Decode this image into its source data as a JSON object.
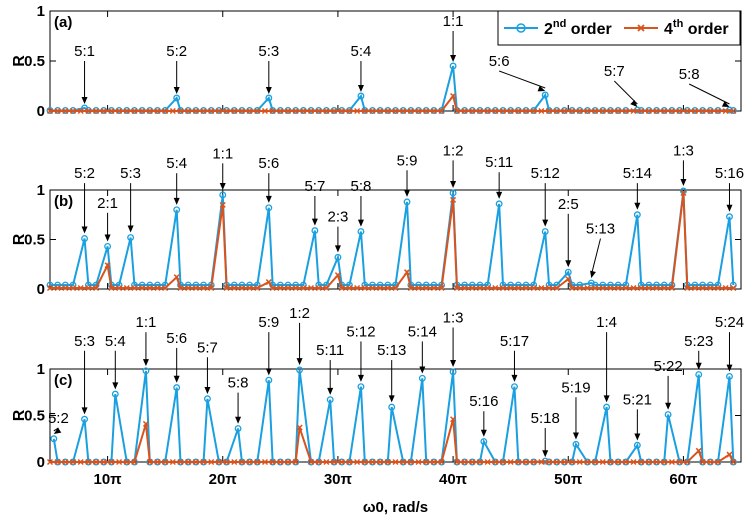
{
  "chart_data": [
    {
      "type": "line",
      "panel_label": "(a)",
      "ylabel": "R",
      "xlim_pi": [
        5,
        65
      ],
      "ylim": [
        0,
        1
      ],
      "yticks": [
        {
          "v": 0,
          "label": "0"
        },
        {
          "v": 0.5,
          "label": "0.5"
        },
        {
          "v": 1,
          "label": "1"
        }
      ],
      "legend": {
        "placement": "top-right"
      },
      "series": [
        {
          "name": "2nd order",
          "color": "#1aa0e0",
          "marker": "circle",
          "baseline": 0.005,
          "peaks": [
            {
              "x_pi": 8.0,
              "y": 0.03
            },
            {
              "x_pi": 16.0,
              "y": 0.13
            },
            {
              "x_pi": 24.0,
              "y": 0.13
            },
            {
              "x_pi": 32.0,
              "y": 0.15
            },
            {
              "x_pi": 40.0,
              "y": 0.45
            },
            {
              "x_pi": 48.0,
              "y": 0.16
            },
            {
              "x_pi": 56.0,
              "y": 0.01
            },
            {
              "x_pi": 64.0,
              "y": 0.01
            }
          ]
        },
        {
          "name": "4th order",
          "color": "#d9531e",
          "marker": "x",
          "baseline": 0.0,
          "peaks": [
            {
              "x_pi": 40.0,
              "y": 0.15
            }
          ]
        }
      ],
      "annotations": [
        {
          "text": "5:1",
          "x_pi": 8.0,
          "tip": 0.05,
          "label_y": 0.55
        },
        {
          "text": "5:2",
          "x_pi": 16.0,
          "tip": 0.15,
          "label_y": 0.55
        },
        {
          "text": "5:3",
          "x_pi": 24.0,
          "tip": 0.15,
          "label_y": 0.55
        },
        {
          "text": "5:4",
          "x_pi": 32.0,
          "tip": 0.17,
          "label_y": 0.55
        },
        {
          "text": "1:1",
          "x_pi": 40.0,
          "tip": 0.47,
          "label_y": 0.85
        },
        {
          "text": "5:6",
          "x_pi": 48.0,
          "tip": 0.18,
          "label_y": 0.45,
          "label_dx": -4
        },
        {
          "text": "5:7",
          "x_pi": 56.0,
          "tip": 0.02,
          "label_y": 0.35,
          "label_dx": -2
        },
        {
          "text": "5:8",
          "x_pi": 64.0,
          "tip": 0.02,
          "label_y": 0.32,
          "label_dx": -3.5
        }
      ]
    },
    {
      "type": "line",
      "panel_label": "(b)",
      "ylabel": "R",
      "xlim_pi": [
        5,
        65
      ],
      "ylim": [
        0,
        1
      ],
      "yticks": [
        {
          "v": 0,
          "label": "0"
        },
        {
          "v": 0.5,
          "label": "0.5"
        },
        {
          "v": 1,
          "label": "1"
        }
      ],
      "series": [
        {
          "name": "2nd order",
          "color": "#1aa0e0",
          "marker": "circle",
          "baseline": 0.04,
          "peaks": [
            {
              "x_pi": 8.0,
              "y": 0.51
            },
            {
              "x_pi": 10.0,
              "y": 0.43
            },
            {
              "x_pi": 12.0,
              "y": 0.52
            },
            {
              "x_pi": 16.0,
              "y": 0.8
            },
            {
              "x_pi": 20.0,
              "y": 0.95
            },
            {
              "x_pi": 24.0,
              "y": 0.82
            },
            {
              "x_pi": 28.0,
              "y": 0.59
            },
            {
              "x_pi": 30.0,
              "y": 0.32
            },
            {
              "x_pi": 32.0,
              "y": 0.58
            },
            {
              "x_pi": 36.0,
              "y": 0.88
            },
            {
              "x_pi": 40.0,
              "y": 0.97
            },
            {
              "x_pi": 44.0,
              "y": 0.86
            },
            {
              "x_pi": 48.0,
              "y": 0.58
            },
            {
              "x_pi": 50.0,
              "y": 0.17
            },
            {
              "x_pi": 52.0,
              "y": 0.06
            },
            {
              "x_pi": 56.0,
              "y": 0.75
            },
            {
              "x_pi": 60.0,
              "y": 0.99
            },
            {
              "x_pi": 64.0,
              "y": 0.73
            }
          ]
        },
        {
          "name": "4th order",
          "color": "#d9531e",
          "marker": "x",
          "baseline": 0.01,
          "peaks": [
            {
              "x_pi": 10.0,
              "y": 0.24
            },
            {
              "x_pi": 16.0,
              "y": 0.12
            },
            {
              "x_pi": 20.0,
              "y": 0.85
            },
            {
              "x_pi": 24.0,
              "y": 0.07
            },
            {
              "x_pi": 30.0,
              "y": 0.14
            },
            {
              "x_pi": 36.0,
              "y": 0.17
            },
            {
              "x_pi": 40.0,
              "y": 0.9
            },
            {
              "x_pi": 50.0,
              "y": 0.1
            },
            {
              "x_pi": 60.0,
              "y": 0.97
            }
          ]
        }
      ],
      "annotations": [
        {
          "text": "5:2",
          "x_pi": 8.0,
          "tip": 0.54,
          "label_y": 1.12
        },
        {
          "text": "2:1",
          "x_pi": 10.0,
          "tip": 0.46,
          "label_y": 0.82
        },
        {
          "text": "5:3",
          "x_pi": 12.0,
          "tip": 0.55,
          "label_y": 1.12
        },
        {
          "text": "5:4",
          "x_pi": 16.0,
          "tip": 0.83,
          "label_y": 1.22
        },
        {
          "text": "1:1",
          "x_pi": 20.0,
          "tip": 0.98,
          "label_y": 1.32
        },
        {
          "text": "5:6",
          "x_pi": 24.0,
          "tip": 0.85,
          "label_y": 1.22
        },
        {
          "text": "5:7",
          "x_pi": 28.0,
          "tip": 0.62,
          "label_y": 0.99
        },
        {
          "text": "2:3",
          "x_pi": 30.0,
          "tip": 0.35,
          "label_y": 0.68
        },
        {
          "text": "5:8",
          "x_pi": 32.0,
          "tip": 0.61,
          "label_y": 0.99
        },
        {
          "text": "5:9",
          "x_pi": 36.0,
          "tip": 0.91,
          "label_y": 1.25
        },
        {
          "text": "1:2",
          "x_pi": 40.0,
          "tip": 1.0,
          "label_y": 1.35
        },
        {
          "text": "5:11",
          "x_pi": 44.0,
          "tip": 0.89,
          "label_y": 1.23
        },
        {
          "text": "5:12",
          "x_pi": 48.0,
          "tip": 0.61,
          "label_y": 1.12
        },
        {
          "text": "2:5",
          "x_pi": 50.0,
          "tip": 0.2,
          "label_y": 0.81
        },
        {
          "text": "5:13",
          "x_pi": 52.0,
          "tip": 0.09,
          "label_y": 0.56,
          "label_dx": 0.8
        },
        {
          "text": "5:14",
          "x_pi": 56.0,
          "tip": 0.78,
          "label_y": 1.12
        },
        {
          "text": "1:3",
          "x_pi": 60.0,
          "tip": 1.02,
          "label_y": 1.35
        },
        {
          "text": "5:16",
          "x_pi": 64.0,
          "tip": 0.76,
          "label_y": 1.12
        }
      ]
    },
    {
      "type": "line",
      "panel_label": "(c)",
      "ylabel": "R",
      "xlim_pi": [
        5,
        65
      ],
      "ylim": [
        0,
        1
      ],
      "yticks": [
        {
          "v": 0,
          "label": "0"
        },
        {
          "v": 0.5,
          "label": "0.5"
        },
        {
          "v": 1,
          "label": "1"
        }
      ],
      "xlabel": "ω0, rad/s",
      "xticks": [
        {
          "v_pi": 10,
          "label": "10π"
        },
        {
          "v_pi": 20,
          "label": "20π"
        },
        {
          "v_pi": 30,
          "label": "30π"
        },
        {
          "v_pi": 40,
          "label": "40π"
        },
        {
          "v_pi": 50,
          "label": "50π"
        },
        {
          "v_pi": 60,
          "label": "60π"
        }
      ],
      "series": [
        {
          "name": "2nd order",
          "color": "#1aa0e0",
          "marker": "circle",
          "baseline": 0.0,
          "peaks": [
            {
              "x_pi": 5.33,
              "y": 0.25
            },
            {
              "x_pi": 8.0,
              "y": 0.46
            },
            {
              "x_pi": 10.67,
              "y": 0.73
            },
            {
              "x_pi": 13.33,
              "y": 0.98
            },
            {
              "x_pi": 16.0,
              "y": 0.8
            },
            {
              "x_pi": 18.67,
              "y": 0.68
            },
            {
              "x_pi": 21.33,
              "y": 0.36
            },
            {
              "x_pi": 24.0,
              "y": 0.88
            },
            {
              "x_pi": 26.67,
              "y": 0.99
            },
            {
              "x_pi": 29.33,
              "y": 0.67
            },
            {
              "x_pi": 32.0,
              "y": 0.81
            },
            {
              "x_pi": 34.67,
              "y": 0.59
            },
            {
              "x_pi": 37.33,
              "y": 0.9
            },
            {
              "x_pi": 40.0,
              "y": 0.97
            },
            {
              "x_pi": 42.67,
              "y": 0.22
            },
            {
              "x_pi": 45.33,
              "y": 0.81
            },
            {
              "x_pi": 48.0,
              "y": 0.01
            },
            {
              "x_pi": 50.67,
              "y": 0.19
            },
            {
              "x_pi": 53.33,
              "y": 0.59
            },
            {
              "x_pi": 56.0,
              "y": 0.18
            },
            {
              "x_pi": 58.67,
              "y": 0.51
            },
            {
              "x_pi": 61.33,
              "y": 0.94
            },
            {
              "x_pi": 64.0,
              "y": 0.92
            }
          ]
        },
        {
          "name": "4th order",
          "color": "#d9531e",
          "marker": "x",
          "baseline": 0.0,
          "peaks": [
            {
              "x_pi": 13.33,
              "y": 0.41
            },
            {
              "x_pi": 26.67,
              "y": 0.37
            },
            {
              "x_pi": 40.0,
              "y": 0.46
            },
            {
              "x_pi": 61.33,
              "y": 0.12
            },
            {
              "x_pi": 64.0,
              "y": 0.08
            }
          ]
        }
      ],
      "annotations": [
        {
          "text": "5:2",
          "x_pi": 5.33,
          "tip": 0.28,
          "label_y": 0.42,
          "label_dx": 0.4
        },
        {
          "text": "5:3",
          "x_pi": 8.0,
          "tip": 0.49,
          "label_y": 1.25
        },
        {
          "text": "5:4",
          "x_pi": 10.67,
          "tip": 0.76,
          "label_y": 1.25
        },
        {
          "text": "1:1",
          "x_pi": 13.33,
          "tip": 1.01,
          "label_y": 1.45
        },
        {
          "text": "5:6",
          "x_pi": 16.0,
          "tip": 0.83,
          "label_y": 1.28
        },
        {
          "text": "5:7",
          "x_pi": 18.67,
          "tip": 0.71,
          "label_y": 1.18
        },
        {
          "text": "5:8",
          "x_pi": 21.33,
          "tip": 0.39,
          "label_y": 0.8
        },
        {
          "text": "5:9",
          "x_pi": 24.0,
          "tip": 0.91,
          "label_y": 1.45
        },
        {
          "text": "1:2",
          "x_pi": 26.67,
          "tip": 1.02,
          "label_y": 1.55
        },
        {
          "text": "5:11",
          "x_pi": 29.33,
          "tip": 0.7,
          "label_y": 1.15
        },
        {
          "text": "5:12",
          "x_pi": 32.0,
          "tip": 0.84,
          "label_y": 1.35
        },
        {
          "text": "5:13",
          "x_pi": 34.67,
          "tip": 0.62,
          "label_y": 1.15
        },
        {
          "text": "5:14",
          "x_pi": 37.33,
          "tip": 0.93,
          "label_y": 1.35
        },
        {
          "text": "1:3",
          "x_pi": 40.0,
          "tip": 1.0,
          "label_y": 1.5
        },
        {
          "text": "5:16",
          "x_pi": 42.67,
          "tip": 0.25,
          "label_y": 0.6
        },
        {
          "text": "5:17",
          "x_pi": 45.33,
          "tip": 0.84,
          "label_y": 1.25
        },
        {
          "text": "5:18",
          "x_pi": 48.0,
          "tip": 0.03,
          "label_y": 0.42
        },
        {
          "text": "5:19",
          "x_pi": 50.67,
          "tip": 0.22,
          "label_y": 0.75
        },
        {
          "text": "1:4",
          "x_pi": 53.33,
          "tip": 0.62,
          "label_y": 1.45
        },
        {
          "text": "5:21",
          "x_pi": 56.0,
          "tip": 0.21,
          "label_y": 0.62
        },
        {
          "text": "5:22",
          "x_pi": 58.67,
          "tip": 0.54,
          "label_y": 0.98
        },
        {
          "text": "5:23",
          "x_pi": 61.33,
          "tip": 0.97,
          "label_y": 1.25
        },
        {
          "text": "5:24",
          "x_pi": 64.0,
          "tip": 0.95,
          "label_y": 1.45
        }
      ]
    }
  ],
  "legend": {
    "items": [
      {
        "base": "2",
        "sup": "nd",
        "rest": " order",
        "color": "#1aa0e0",
        "marker": "circle"
      },
      {
        "base": "4",
        "sup": "th",
        "rest": " order",
        "color": "#d9531e",
        "marker": "x"
      }
    ]
  }
}
